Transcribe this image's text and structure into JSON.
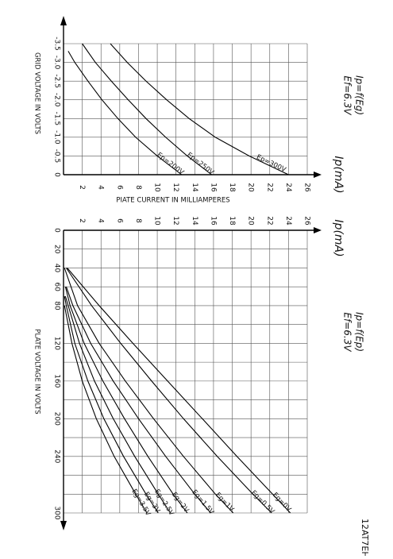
{
  "page": {
    "model": "12AT7EH"
  },
  "chart_data": [
    {
      "type": "line",
      "title": "Ip=f(Eg)",
      "subtitle": "Ef=6.3V",
      "xlabel": "GRID VOLTAGE IN VOLTS",
      "ylabel": "Ip(mA)",
      "ylabel2": "PIATE CURRENT IN MILLIAMPERES",
      "xlim": [
        -3.5,
        0
      ],
      "ylim": [
        0,
        26
      ],
      "grid": true,
      "x_ticks": [
        "-3.5",
        "-3.0",
        "-2.5",
        "-2.0",
        "-1.5",
        "-1.0",
        "-0.5",
        "0"
      ],
      "y_ticks": [
        "2",
        "4",
        "6",
        "8",
        "10",
        "12",
        "14",
        "16",
        "18",
        "20",
        "22",
        "24",
        "26"
      ],
      "series": [
        {
          "name": "Ep=200V",
          "x": [
            -3.3,
            -3.0,
            -2.5,
            -2.0,
            -1.5,
            -1.0,
            -0.5,
            0
          ],
          "y": [
            0.5,
            1.2,
            2.6,
            4.1,
            5.8,
            7.7,
            10.0,
            12.6
          ]
        },
        {
          "name": "Ep=250V",
          "x": [
            -3.5,
            -3.0,
            -2.5,
            -2.0,
            -1.5,
            -1.0,
            -0.5,
            0
          ],
          "y": [
            2.0,
            3.4,
            5.1,
            6.9,
            8.8,
            10.9,
            13.2,
            15.8
          ]
        },
        {
          "name": "Ep=300V",
          "x": [
            -3.5,
            -3.0,
            -2.5,
            -2.0,
            -1.5,
            -1.0,
            -0.5,
            0
          ],
          "y": [
            5.0,
            6.8,
            8.8,
            11.0,
            13.4,
            16.2,
            19.8,
            24.0
          ]
        }
      ]
    },
    {
      "type": "line",
      "title": "Ip=f(Ep)",
      "subtitle": "Ef=6.3V",
      "xlabel": "PLATE VOLTAGE IN VOLTS",
      "ylabel": "Ip(mA)",
      "xlim": [
        0,
        300
      ],
      "ylim": [
        0,
        26
      ],
      "grid": true,
      "x_ticks": [
        "0",
        "20",
        "40",
        "60",
        "80",
        "120",
        "160",
        "200",
        "240",
        "300"
      ],
      "y_ticks": [
        "2",
        "4",
        "6",
        "8",
        "10",
        "12",
        "14",
        "16",
        "18",
        "20",
        "22",
        "24",
        "26"
      ],
      "series": [
        {
          "name": "Eg=0V",
          "x": [
            40,
            80,
            120,
            160,
            200,
            240,
            280,
            300
          ],
          "y": [
            0.4,
            3.8,
            7.4,
            11.1,
            14.8,
            18.5,
            22.3,
            24.2
          ]
        },
        {
          "name": "Eg=0.5V",
          "x": [
            40,
            80,
            120,
            160,
            200,
            240,
            280,
            300
          ],
          "y": [
            0.3,
            3.0,
            6.1,
            9.4,
            12.8,
            16.4,
            20.2,
            22.2
          ]
        },
        {
          "name": "Eg=1V",
          "x": [
            40,
            80,
            120,
            160,
            200,
            240,
            280,
            300
          ],
          "y": [
            0.1,
            1.5,
            3.8,
            6.6,
            9.6,
            12.8,
            16.2,
            18.1
          ]
        },
        {
          "name": "Eg=1.5V",
          "x": [
            60,
            80,
            120,
            160,
            200,
            240,
            280,
            300
          ],
          "y": [
            0.3,
            1.0,
            2.9,
            5.3,
            8.0,
            10.9,
            14.0,
            15.7
          ]
        },
        {
          "name": "Eg=2V",
          "x": [
            60,
            80,
            120,
            160,
            200,
            240,
            280,
            300
          ],
          "y": [
            0.2,
            0.7,
            2.2,
            4.2,
            6.5,
            9.0,
            11.7,
            13.2
          ]
        },
        {
          "name": "Eg=2.5V",
          "x": [
            70,
            80,
            120,
            160,
            200,
            240,
            280,
            300
          ],
          "y": [
            0.2,
            0.5,
            1.7,
            3.3,
            5.3,
            7.6,
            10.1,
            11.4
          ]
        },
        {
          "name": "Eg=3V",
          "x": [
            70,
            80,
            120,
            160,
            200,
            240,
            280,
            300
          ],
          "y": [
            0.1,
            0.3,
            1.2,
            2.6,
            4.3,
            6.4,
            8.8,
            10.1
          ]
        },
        {
          "name": "Eg=3.5V",
          "x": [
            80,
            120,
            160,
            200,
            240,
            280,
            300
          ],
          "y": [
            0.1,
            0.9,
            2.0,
            3.5,
            5.4,
            7.7,
            8.9
          ]
        }
      ]
    }
  ]
}
